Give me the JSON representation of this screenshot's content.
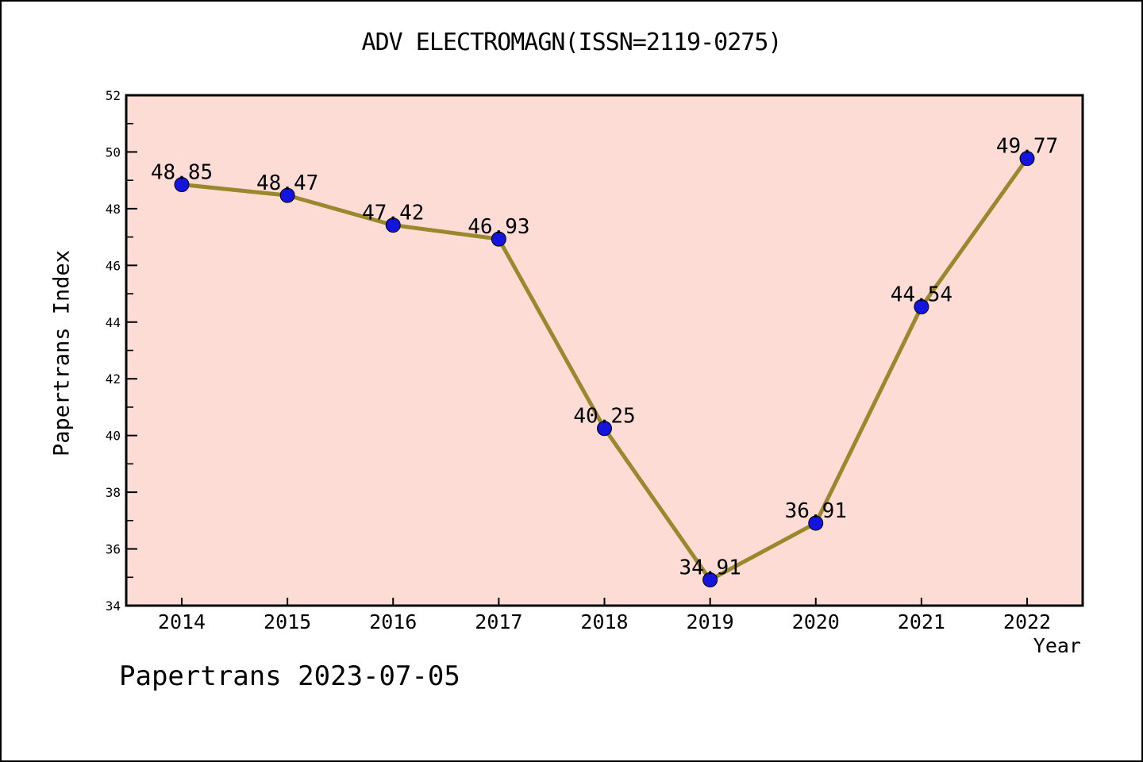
{
  "window": {
    "background": "#ffffff",
    "border_color": "#000000"
  },
  "header": {
    "title": "ADV ELECTROMAGN(ISSN=2119-0275)"
  },
  "footer": {
    "text": "Papertrans 2023-07-05"
  },
  "chart_data": {
    "type": "line",
    "title": "ADV ELECTROMAGN(ISSN=2119-0275)",
    "xlabel": "Year",
    "ylabel": "Papertrans Index",
    "x": [
      2014,
      2015,
      2016,
      2017,
      2018,
      2019,
      2020,
      2021,
      2022
    ],
    "x_ticks": [
      "2014",
      "2015",
      "2016",
      "2017",
      "2018",
      "2019",
      "2020",
      "2021",
      "2022"
    ],
    "series": [
      {
        "name": "Papertrans Index",
        "values": [
          48.85,
          48.47,
          47.42,
          46.93,
          40.25,
          34.91,
          36.91,
          44.54,
          49.77
        ],
        "point_labels": [
          "48.85",
          "48.47",
          "47.42",
          "46.93",
          "40.25",
          "34.91",
          "36.91",
          "44.54",
          "49.77"
        ],
        "line_color": "#9a882e",
        "marker_color": "#1414dc",
        "marker_edge_color": "#000000"
      }
    ],
    "ylim": [
      34,
      52
    ],
    "y_major_ticks": [
      "34",
      "36",
      "38",
      "40",
      "42",
      "44",
      "46",
      "48",
      "50",
      "52"
    ],
    "y_minor_ticks": [
      35,
      37,
      39,
      41,
      43,
      45,
      47,
      49,
      51
    ],
    "grid": false,
    "legend": "none",
    "plot_background": "#fcdcd5",
    "axis_color": "#000000"
  }
}
